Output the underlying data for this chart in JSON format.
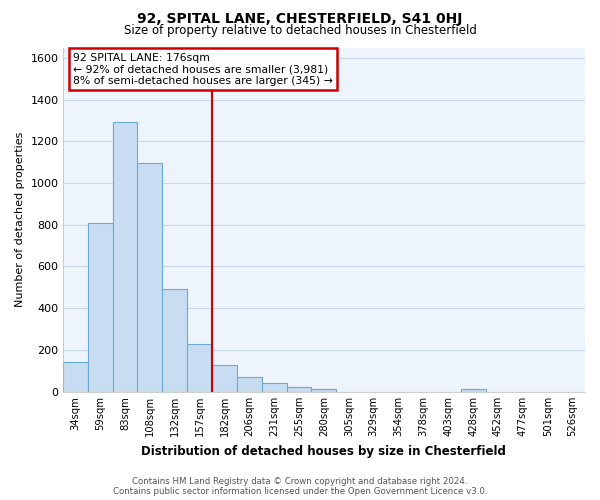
{
  "title": "92, SPITAL LANE, CHESTERFIELD, S41 0HJ",
  "subtitle": "Size of property relative to detached houses in Chesterfield",
  "xlabel": "Distribution of detached houses by size in Chesterfield",
  "ylabel": "Number of detached properties",
  "bar_labels": [
    "34sqm",
    "59sqm",
    "83sqm",
    "108sqm",
    "132sqm",
    "157sqm",
    "182sqm",
    "206sqm",
    "231sqm",
    "255sqm",
    "280sqm",
    "305sqm",
    "329sqm",
    "354sqm",
    "378sqm",
    "403sqm",
    "428sqm",
    "452sqm",
    "477sqm",
    "501sqm",
    "526sqm"
  ],
  "bar_values": [
    140,
    810,
    1295,
    1095,
    490,
    230,
    130,
    70,
    40,
    22,
    12,
    0,
    0,
    0,
    0,
    0,
    12,
    0,
    0,
    0,
    0
  ],
  "bar_color": "#c8ddf2",
  "bar_edge_color": "#6aaad4",
  "vline_index": 6,
  "vline_color": "#cc0000",
  "ylim": [
    0,
    1650
  ],
  "yticks": [
    0,
    200,
    400,
    600,
    800,
    1000,
    1200,
    1400,
    1600
  ],
  "annotation_title": "92 SPITAL LANE: 176sqm",
  "annotation_line1": "← 92% of detached houses are smaller (3,981)",
  "annotation_line2": "8% of semi-detached houses are larger (345) →",
  "annotation_box_color": "#ffffff",
  "annotation_box_edge": "#cc0000",
  "footer1": "Contains HM Land Registry data © Crown copyright and database right 2024.",
  "footer2": "Contains public sector information licensed under the Open Government Licence v3.0.",
  "bg_color": "#ffffff",
  "grid_color": "#c8d8e8",
  "plot_bg_color": "#eef4fb"
}
